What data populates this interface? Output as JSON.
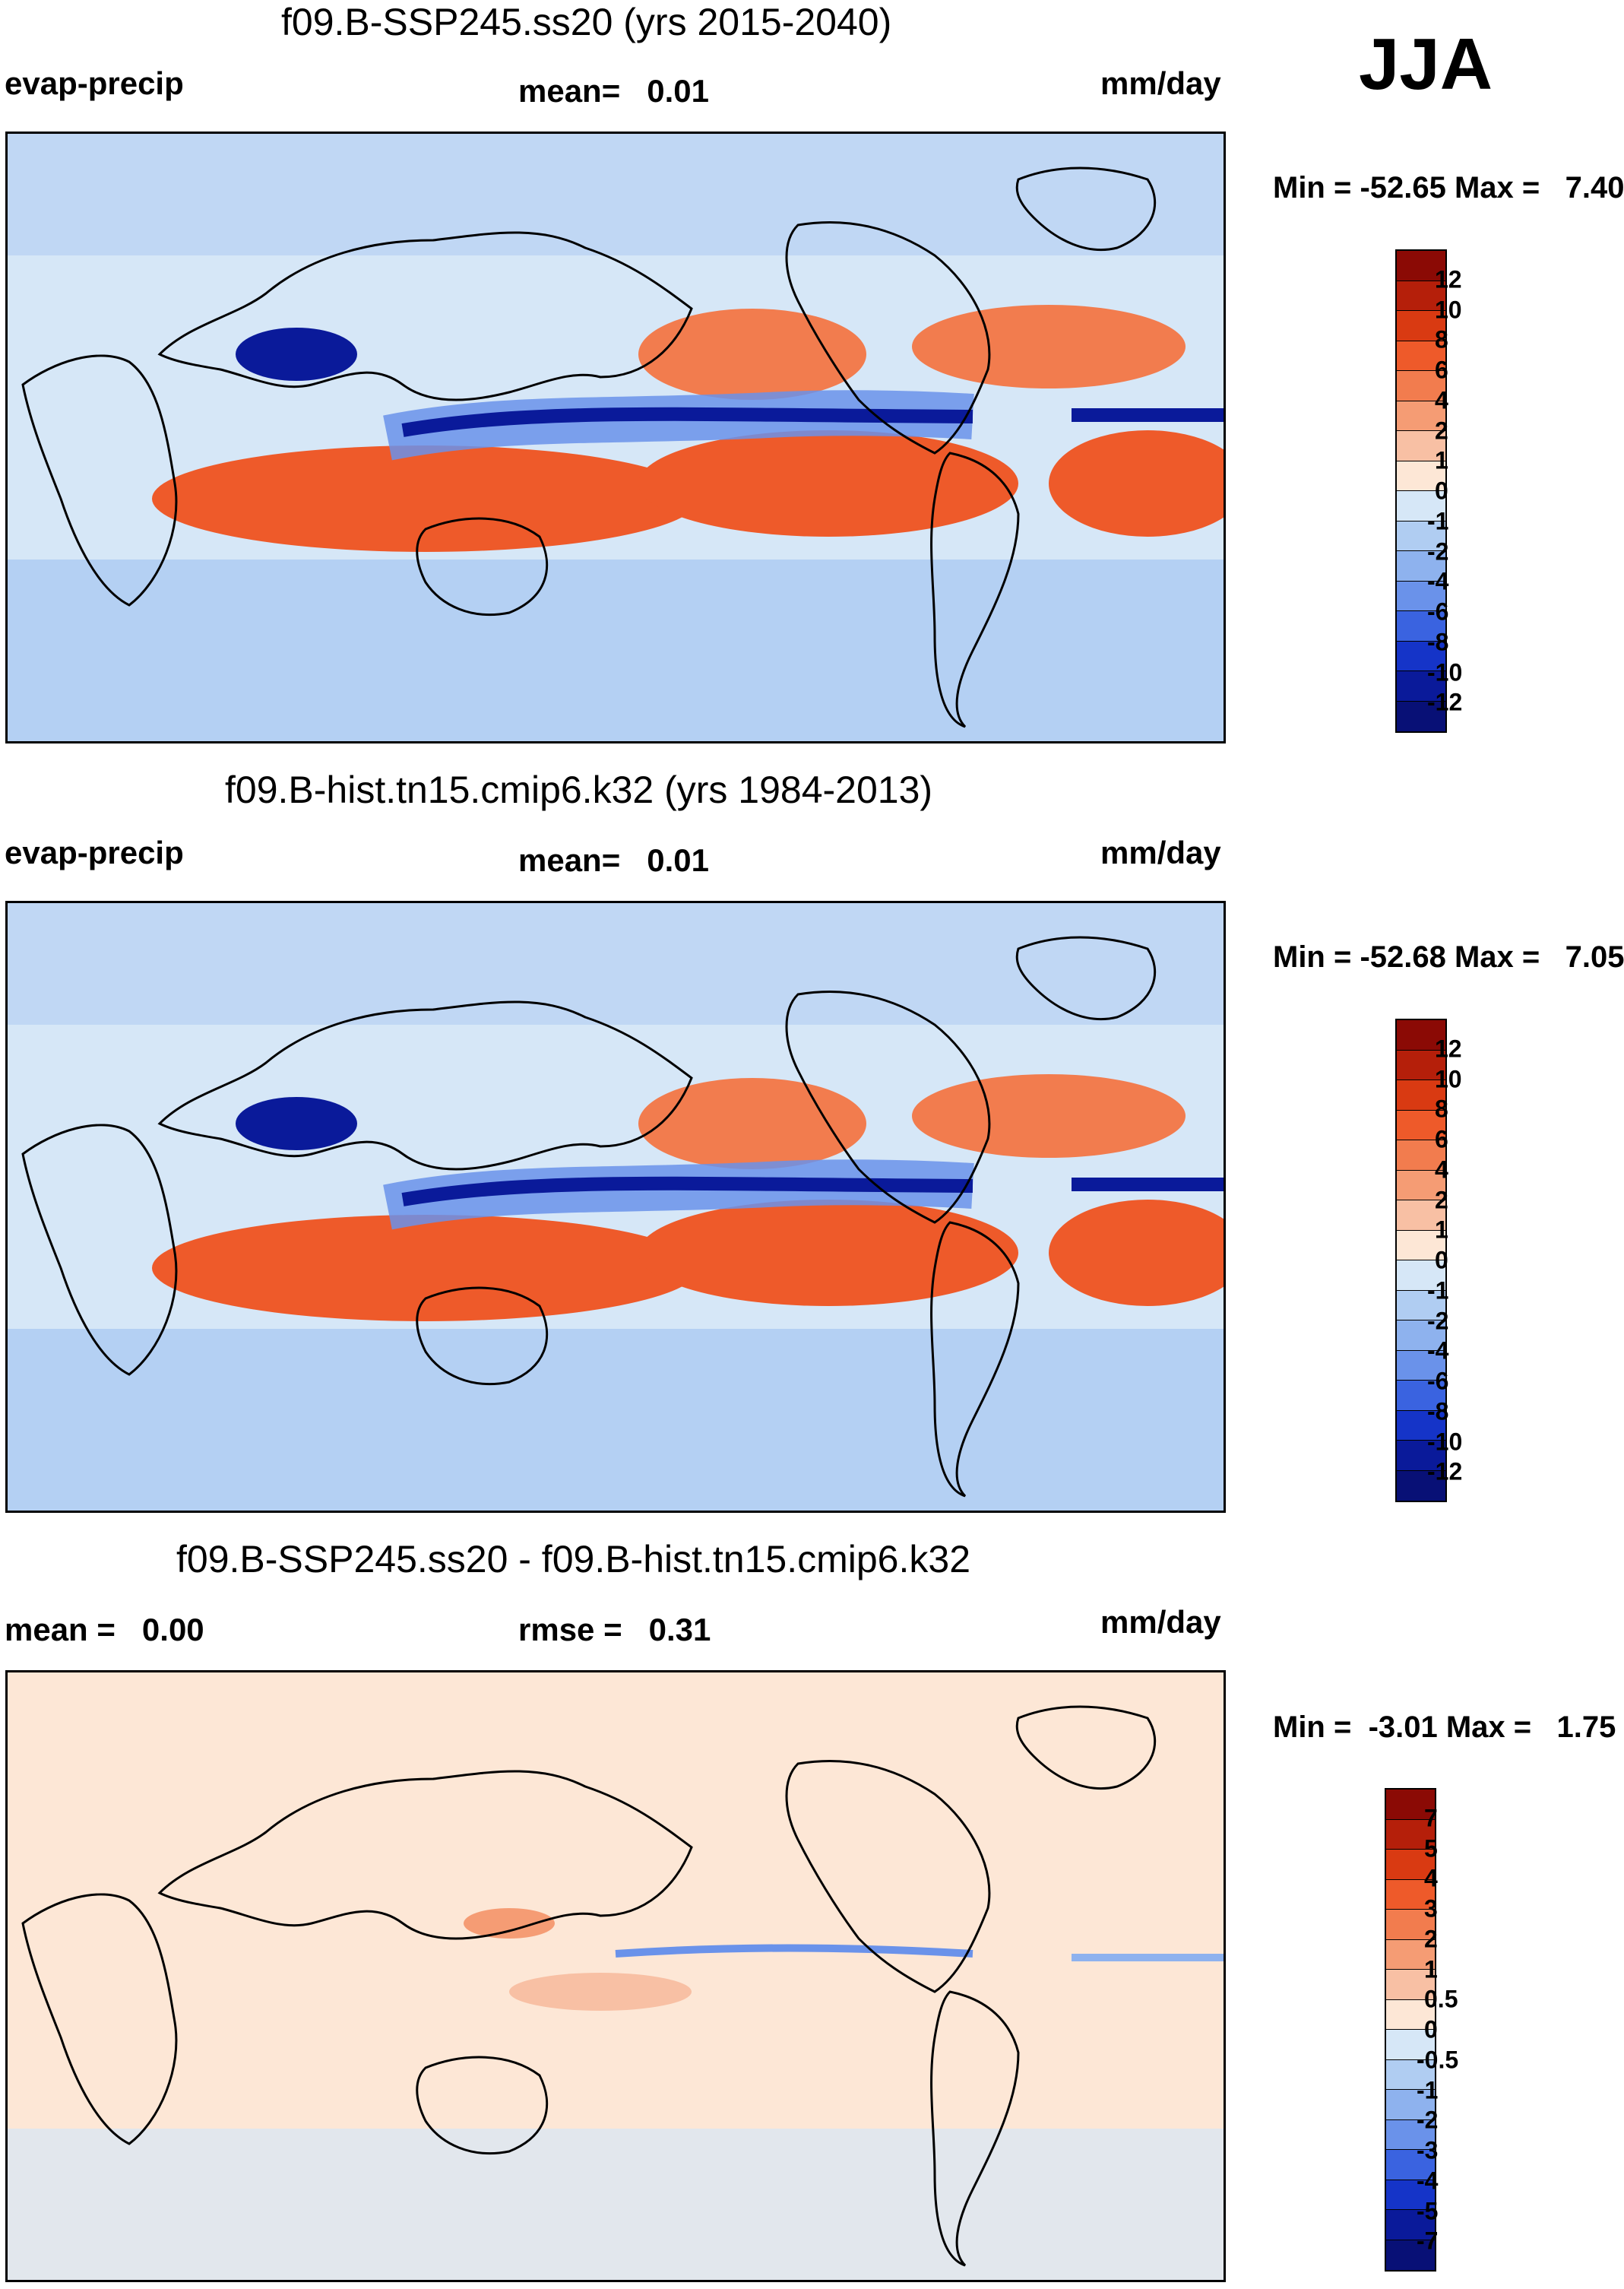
{
  "season": "JJA",
  "panels": [
    {
      "title": "f09.B-SSP245.ss20 (yrs 2015-2040)",
      "left_label": "evap-precip",
      "center_label": "mean=   0.01",
      "units": "mm/day",
      "min_max": "Min = -52.65 Max =   7.40",
      "colorbar": {
        "labels": [
          "12",
          "10",
          "8",
          "6",
          "4",
          "2",
          "1",
          "0",
          "-1",
          "-2",
          "-4",
          "-6",
          "-8",
          "-10",
          "-12"
        ],
        "colors": [
          "#8b0a05",
          "#b51f0a",
          "#d93a12",
          "#ee5a2a",
          "#f27c4e",
          "#f59c74",
          "#f8c0a4",
          "#fde7d6",
          "#d6e7f7",
          "#b0cdf2",
          "#8eb2ee",
          "#6a92ea",
          "#3a63e0",
          "#1534c8",
          "#0a1a9a",
          "#081076"
        ]
      },
      "map": {
        "mean": 0.01,
        "min": -52.65,
        "max": 7.4,
        "features": [
          {
            "kind": "wet band",
            "region": "Pacific ITCZ",
            "color": "#0a1a9a"
          },
          {
            "kind": "wet band",
            "region": "Atlantic ITCZ",
            "color": "#0a1a9a"
          },
          {
            "kind": "wet",
            "region": "Bay of Bengal / Asian monsoon",
            "color": "#0a1a9a"
          },
          {
            "kind": "dry",
            "region": "SE Pacific",
            "color": "#ee5a2a"
          },
          {
            "kind": "dry",
            "region": "South Atlantic",
            "color": "#ee5a2a"
          },
          {
            "kind": "dry",
            "region": "South Indian Ocean",
            "color": "#ee5a2a"
          },
          {
            "kind": "dry",
            "region": "North Pacific subtropics",
            "color": "#f27c4e"
          },
          {
            "kind": "dry",
            "region": "North Atlantic subtropics",
            "color": "#f27c4e"
          }
        ]
      }
    },
    {
      "title": "f09.B-hist.tn15.cmip6.k32 (yrs 1984-2013)",
      "left_label": "evap-precip",
      "center_label": "mean=   0.01",
      "units": "mm/day",
      "min_max": "Min = -52.68 Max =   7.05",
      "colorbar": {
        "labels": [
          "12",
          "10",
          "8",
          "6",
          "4",
          "2",
          "1",
          "0",
          "-1",
          "-2",
          "-4",
          "-6",
          "-8",
          "-10",
          "-12"
        ],
        "colors": [
          "#8b0a05",
          "#b51f0a",
          "#d93a12",
          "#ee5a2a",
          "#f27c4e",
          "#f59c74",
          "#f8c0a4",
          "#fde7d6",
          "#d6e7f7",
          "#b0cdf2",
          "#8eb2ee",
          "#6a92ea",
          "#3a63e0",
          "#1534c8",
          "#0a1a9a",
          "#081076"
        ]
      },
      "map": {
        "mean": 0.01,
        "min": -52.68,
        "max": 7.05,
        "features": [
          {
            "kind": "wet band",
            "region": "Pacific ITCZ",
            "color": "#0a1a9a"
          },
          {
            "kind": "wet band",
            "region": "Atlantic ITCZ",
            "color": "#0a1a9a"
          },
          {
            "kind": "wet",
            "region": "Bay of Bengal / Asian monsoon",
            "color": "#0a1a9a"
          },
          {
            "kind": "dry",
            "region": "SE Pacific",
            "color": "#ee5a2a"
          },
          {
            "kind": "dry",
            "region": "South Atlantic",
            "color": "#ee5a2a"
          },
          {
            "kind": "dry",
            "region": "South Indian Ocean",
            "color": "#ee5a2a"
          },
          {
            "kind": "dry",
            "region": "North Pacific subtropics",
            "color": "#f27c4e"
          },
          {
            "kind": "dry",
            "region": "North Atlantic subtropics",
            "color": "#f27c4e"
          }
        ]
      }
    },
    {
      "title": "f09.B-SSP245.ss20 - f09.B-hist.tn15.cmip6.k32",
      "left_label": "mean =   0.00",
      "center_label": "rmse =   0.31",
      "units": "mm/day",
      "min_max": "Min =  -3.01 Max =   1.75",
      "colorbar": {
        "labels": [
          "7",
          "5",
          "4",
          "3",
          "2",
          "1",
          "0.5",
          "0",
          "-0.5",
          "-1",
          "-2",
          "-3",
          "-4",
          "-5",
          "-7"
        ],
        "colors": [
          "#8b0a05",
          "#b51f0a",
          "#d93a12",
          "#ee5a2a",
          "#f27c4e",
          "#f59c74",
          "#f8c0a4",
          "#fde7d6",
          "#d6e7f7",
          "#b0cdf2",
          "#8eb2ee",
          "#6a92ea",
          "#3a63e0",
          "#1534c8",
          "#0a1a9a",
          "#081076"
        ]
      },
      "map": {
        "mean": 0.0,
        "rmse": 0.31,
        "min": -3.01,
        "max": 1.75,
        "features": [
          {
            "kind": "wet band",
            "region": "Pacific ITCZ",
            "color": "#6a92ea"
          },
          {
            "kind": "wet band",
            "region": "Atlantic ITCZ",
            "color": "#8eb2ee"
          },
          {
            "kind": "dry",
            "region": "West Pacific",
            "color": "#f59c74"
          },
          {
            "kind": "mixed",
            "region": "Maritime Continent",
            "color": "#f8c0a4"
          }
        ]
      }
    }
  ]
}
